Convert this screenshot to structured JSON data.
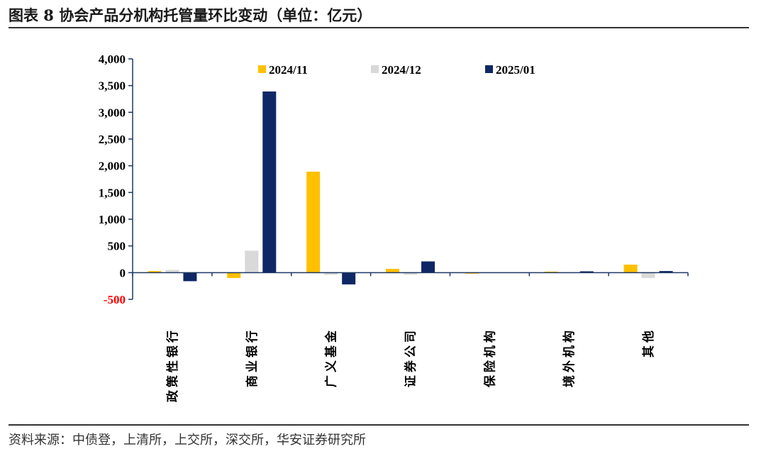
{
  "title": "图表 8 协会产品分机构托管量环比变动（单位：亿元）",
  "source": "资料来源：中债登，上清所，上交所，深交所，华安证券研究所",
  "colors": {
    "s2024_11": "#FFC000",
    "s2024_12": "#D9D9D9",
    "s2025_01": "#0F2765",
    "negative_tick": "#FF0000",
    "axis": "#1F3864"
  },
  "chart_data": {
    "type": "bar",
    "title": "图表 8 协会产品分机构托管量环比变动（单位：亿元）",
    "categories": [
      "政策性银行",
      "商业银行",
      "广义基金",
      "证券公司",
      "保险机构",
      "境外机构",
      "其他"
    ],
    "series": [
      {
        "name": "2024/11",
        "values": [
          30,
          -100,
          1890,
          70,
          -20,
          20,
          150
        ]
      },
      {
        "name": "2024/12",
        "values": [
          50,
          410,
          -40,
          -40,
          0,
          0,
          -100
        ]
      },
      {
        "name": "2025/01",
        "values": [
          -160,
          3390,
          -220,
          210,
          0,
          25,
          30
        ]
      }
    ],
    "ylim": [
      -500,
      4000
    ],
    "yticks": [
      "4,000",
      "3,500",
      "3,000",
      "2,500",
      "2,000",
      "1,500",
      "1,000",
      "500",
      "0",
      "-500"
    ],
    "ytick_values": [
      4000,
      3500,
      3000,
      2500,
      2000,
      1500,
      1000,
      500,
      0,
      -500
    ],
    "legend_position": "top",
    "grid": false
  }
}
